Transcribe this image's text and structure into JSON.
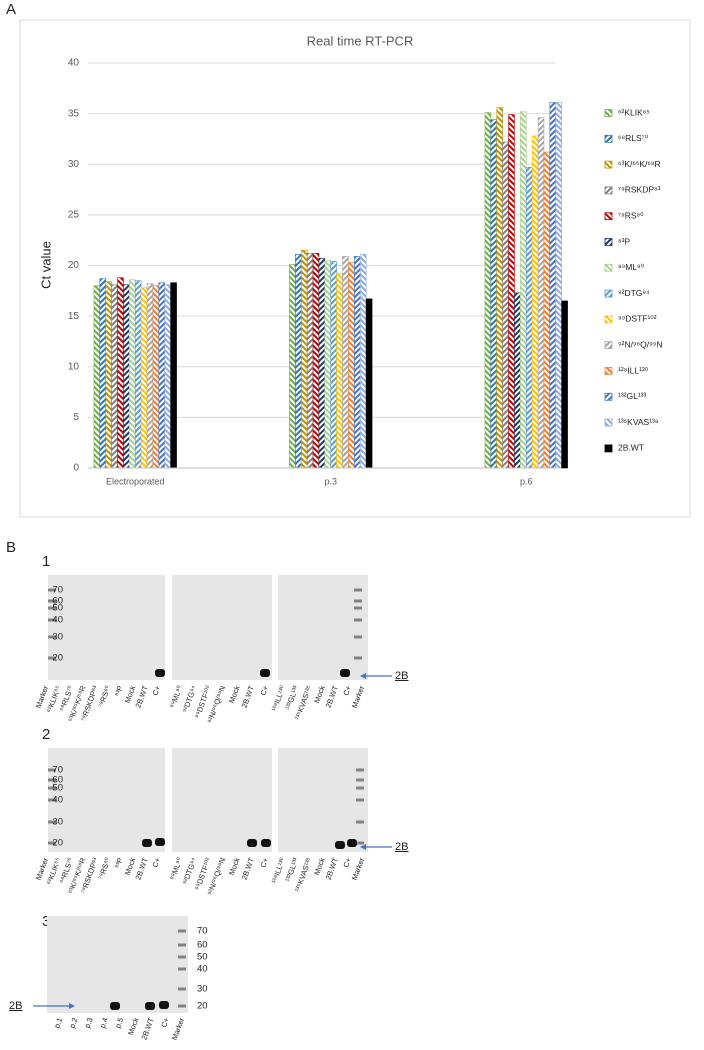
{
  "panel_a_label": "A",
  "chart_data": {
    "type": "bar",
    "title": "Real time RT-PCR",
    "y_label": "Ct value",
    "categories": [
      "Electroporated",
      "p.3",
      "p.6"
    ],
    "ylim": [
      0,
      40
    ],
    "yticks": [
      0,
      5,
      10,
      15,
      20,
      25,
      30,
      35,
      40
    ],
    "grid": true,
    "legend": "right",
    "series": [
      {
        "name": "⁶²KLIK⁶⁵",
        "color": "#70ad47",
        "values": [
          18.0,
          20.1,
          35.1
        ]
      },
      {
        "name": "⁶⁸RLS⁷⁰",
        "color": "#2e75b6",
        "values": [
          18.7,
          21.1,
          34.4
        ]
      },
      {
        "name": "⁶³K/⁶⁵K/⁶⁸R",
        "color": "#bf9000",
        "values": [
          18.4,
          21.5,
          35.6
        ]
      },
      {
        "name": "⁷⁹RSKDP⁸³",
        "color": "#7f7f7f",
        "values": [
          18.1,
          21.2,
          32.2
        ]
      },
      {
        "name": "⁷⁹RS⁸⁰",
        "color": "#c00000",
        "values": [
          18.8,
          21.2,
          34.9
        ]
      },
      {
        "name": "⁸³P",
        "color": "#203864",
        "values": [
          18.1,
          20.7,
          17.3
        ]
      },
      {
        "name": "⁸⁹ML⁹⁰",
        "color": "#a9d18e",
        "values": [
          18.6,
          20.5,
          35.2
        ]
      },
      {
        "name": "⁹²DTG⁹⁴",
        "color": "#5b9bd5",
        "values": [
          18.5,
          20.4,
          29.7
        ]
      },
      {
        "name": "⁹⁹DSTF¹⁰²",
        "color": "#ffc000",
        "values": [
          17.8,
          19.2,
          32.8
        ]
      },
      {
        "name": "⁹²N/⁹⁶Q/⁹⁹N",
        "color": "#a5a5a5",
        "values": [
          18.2,
          20.9,
          34.6
        ]
      },
      {
        "name": "¹²⁸ILL¹³⁰",
        "color": "#ed7d31",
        "values": [
          18.0,
          20.3,
          31.2
        ]
      },
      {
        "name": "¹³²GL¹³³",
        "color": "#4472c4",
        "values": [
          18.3,
          20.9,
          36.1
        ]
      },
      {
        "name": "¹³⁵KVAS¹³⁸",
        "color": "#8faadc",
        "values": [
          18.1,
          21.1,
          36.1
        ]
      },
      {
        "name": "2B.WT",
        "color": "#000000",
        "values": [
          18.3,
          16.7,
          16.5
        ]
      }
    ]
  },
  "panel_b": {
    "label": "B",
    "blots": [
      {
        "number": "1",
        "markers": [
          "70",
          "60",
          "50",
          "40",
          "30",
          "20"
        ],
        "band_label": "2B",
        "lanes": [
          "Marker",
          "⁶²KLIK⁶⁵",
          "⁶⁸RLS⁷⁰",
          "⁶³K/⁶⁵K/⁶⁸R",
          "⁷⁹RSKDP⁸³",
          "⁷⁹RS⁸⁰",
          "⁸³P",
          "Mock",
          "2B.WT",
          "C+",
          "⁸⁹ML⁹⁰",
          "⁹²DTG⁹⁴",
          "⁹⁹DSTF¹⁰²",
          "⁹²N/⁹⁶Q/⁹⁹N",
          "Mock",
          "2B.WT",
          "C+",
          "¹²⁸ILL¹³⁰",
          "¹³²GL¹³³",
          "¹³⁵KVAS¹³⁸",
          "Mock",
          "2B.WT",
          "C+",
          "Marker"
        ]
      },
      {
        "number": "2",
        "markers": [
          "70",
          "60",
          "50",
          "40",
          "30",
          "20"
        ],
        "band_label": "2B",
        "lanes": [
          "Marker",
          "⁶²KLIK⁶⁵",
          "⁶⁸RLS⁷⁰",
          "⁶³K/⁶⁵K/⁶⁸R",
          "⁷⁹RSKDP⁸³",
          "⁷⁹RS⁸⁰",
          "⁸³P",
          "Mock",
          "2B.WT",
          "C+",
          "⁸⁹ML⁹⁰",
          "⁹²DTG⁹⁴",
          "⁹⁹DSTF¹⁰²",
          "⁹²N/⁹⁶Q/⁹⁹N",
          "Mock",
          "2B.WT",
          "C+",
          "¹²⁸ILL¹³⁰",
          "¹³²GL¹³³",
          "¹³⁵KVAS¹³⁸",
          "Mock",
          "2B.WT",
          "C+",
          "Marker"
        ]
      },
      {
        "number": "3",
        "markers": [
          "70",
          "60",
          "50",
          "40",
          "30",
          "20"
        ],
        "band_label": "2B",
        "lanes": [
          "p.1",
          "p.2",
          "p.3",
          "p.4",
          "p.5",
          "Mock",
          "2B.WT",
          "C+",
          "Marker"
        ]
      }
    ]
  }
}
